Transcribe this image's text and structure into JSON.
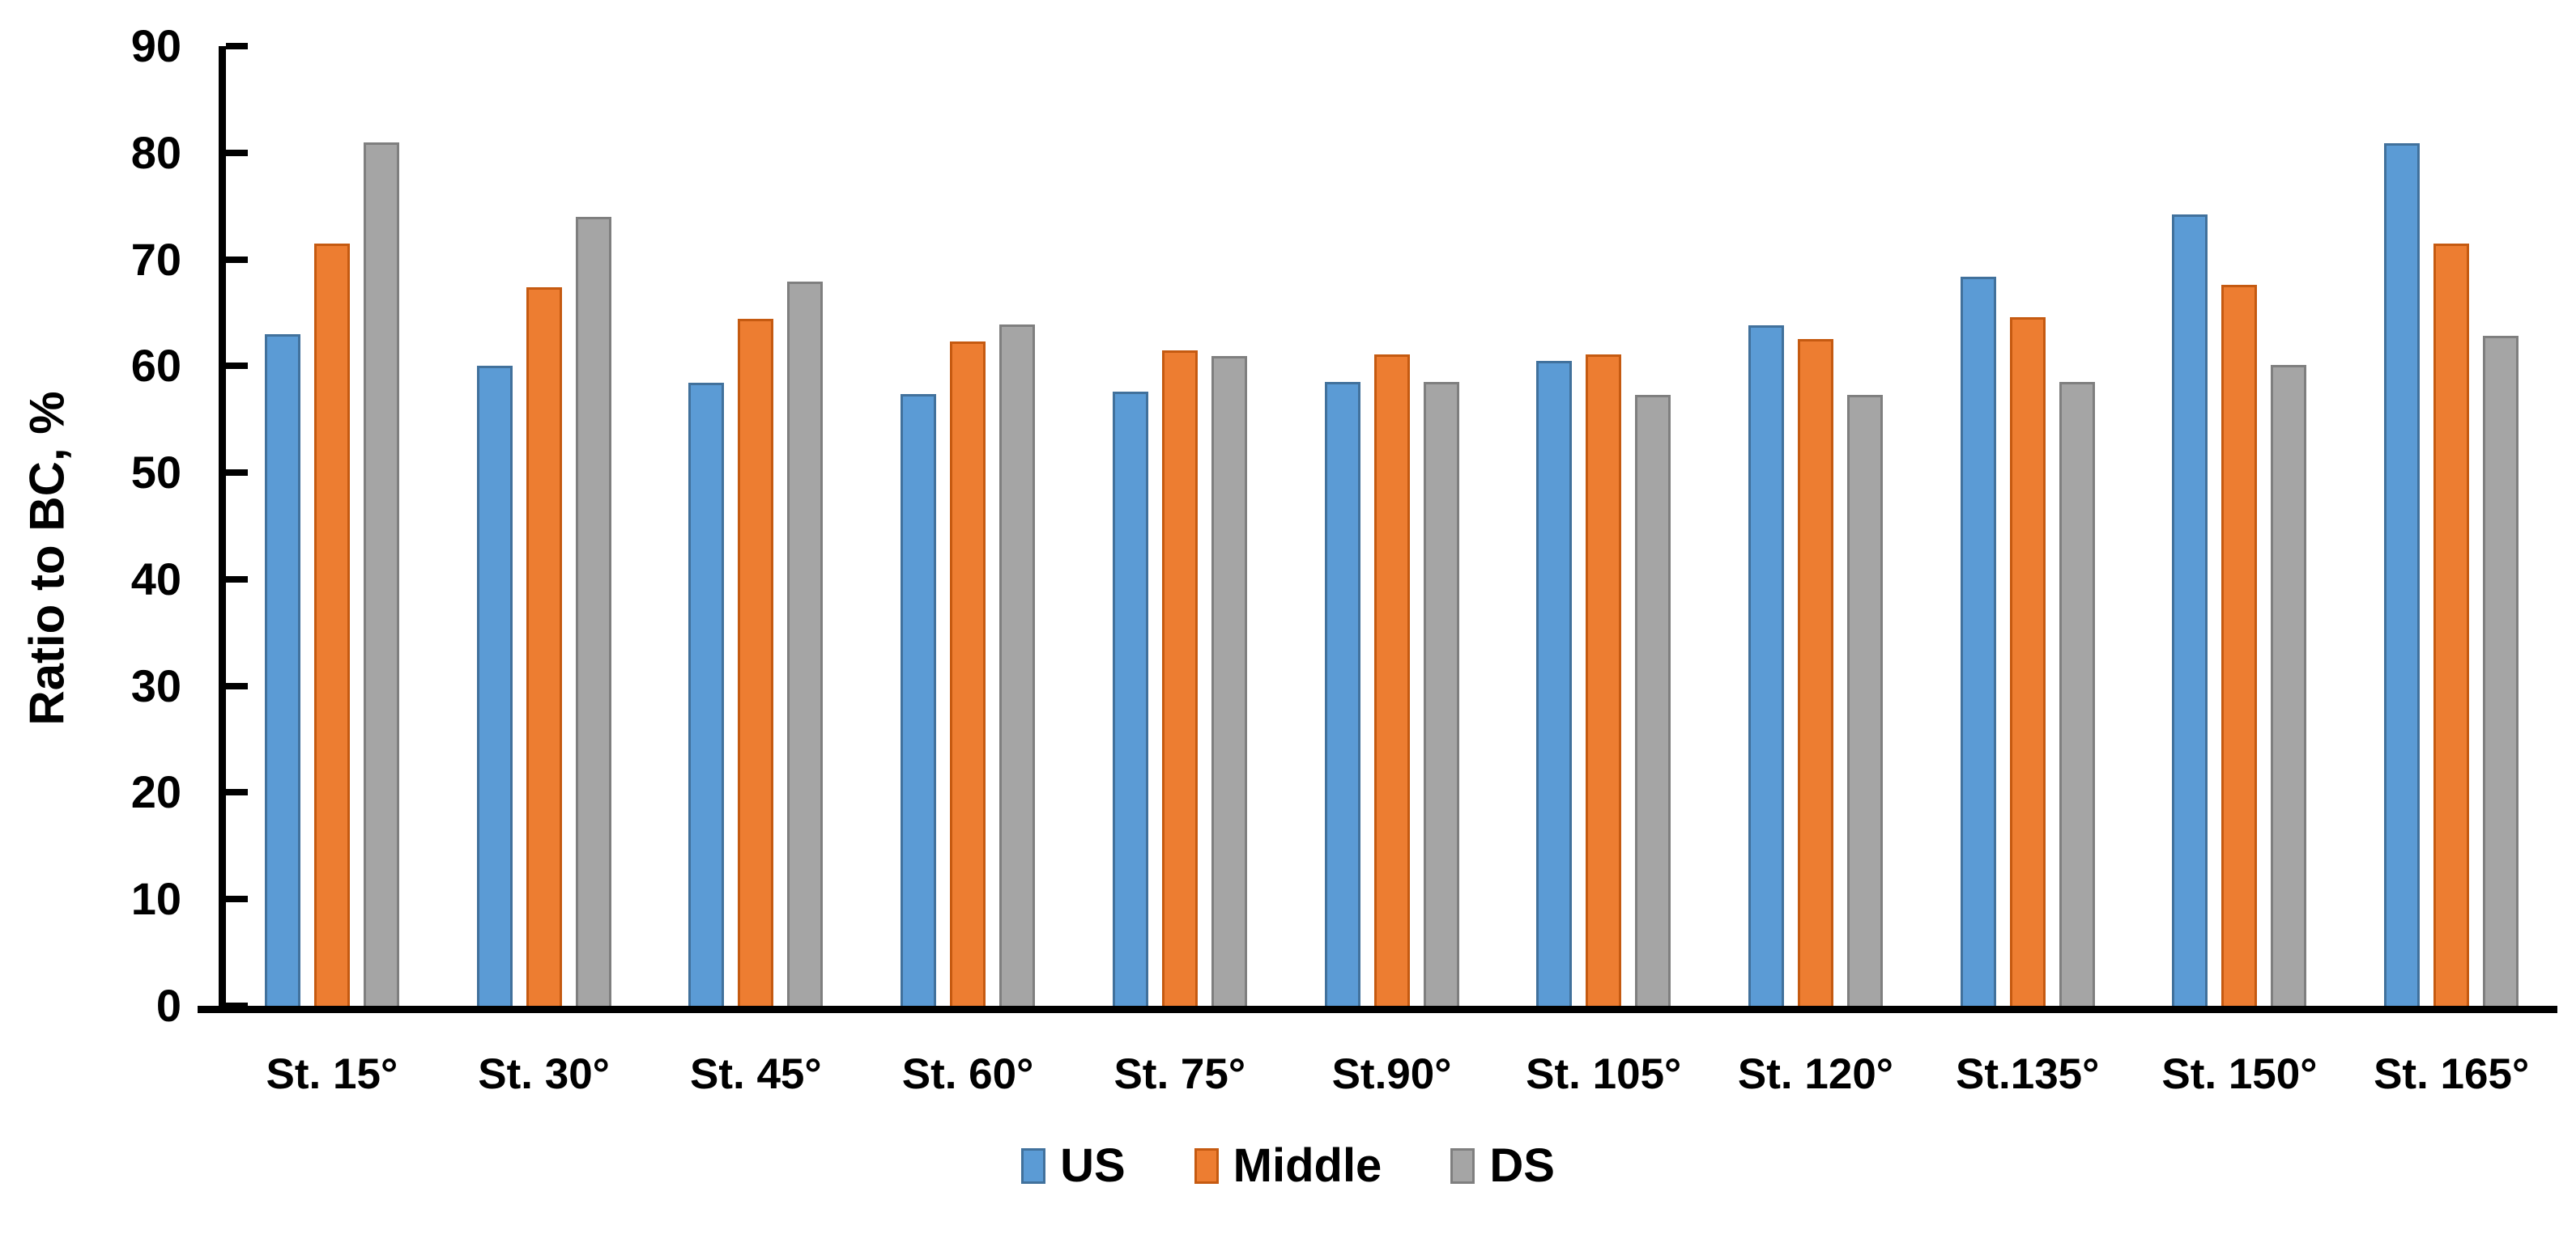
{
  "chart_data": {
    "type": "bar",
    "title": "",
    "xlabel": "",
    "ylabel": "Ratio to BC, %",
    "ylim": [
      0,
      90
    ],
    "yticks": [
      0,
      10,
      20,
      30,
      40,
      50,
      60,
      70,
      80,
      90
    ],
    "grid": false,
    "legend_position": "bottom",
    "categories": [
      "St. 15°",
      "St. 30°",
      "St. 45°",
      "St. 60°",
      "St. 75°",
      "St.90°",
      "St. 105°",
      "St. 120°",
      "St.135°",
      "St. 150°",
      "St. 165°"
    ],
    "series": [
      {
        "name": "US",
        "fill": "#5B9BD5",
        "border": "#41719C",
        "values": [
          63.0,
          60.0,
          58.4,
          57.4,
          57.6,
          58.5,
          60.5,
          63.8,
          68.4,
          74.2,
          80.9
        ]
      },
      {
        "name": "Middle",
        "fill": "#ED7D31",
        "border": "#C55A11",
        "values": [
          71.5,
          67.4,
          64.4,
          62.3,
          61.5,
          61.1,
          61.1,
          62.5,
          64.6,
          67.6,
          71.5
        ]
      },
      {
        "name": "DS",
        "fill": "#A5A5A5",
        "border": "#7F7F7F",
        "values": [
          81.0,
          74.0,
          67.9,
          63.9,
          60.9,
          58.5,
          57.3,
          57.3,
          58.5,
          60.1,
          62.8
        ]
      }
    ]
  }
}
